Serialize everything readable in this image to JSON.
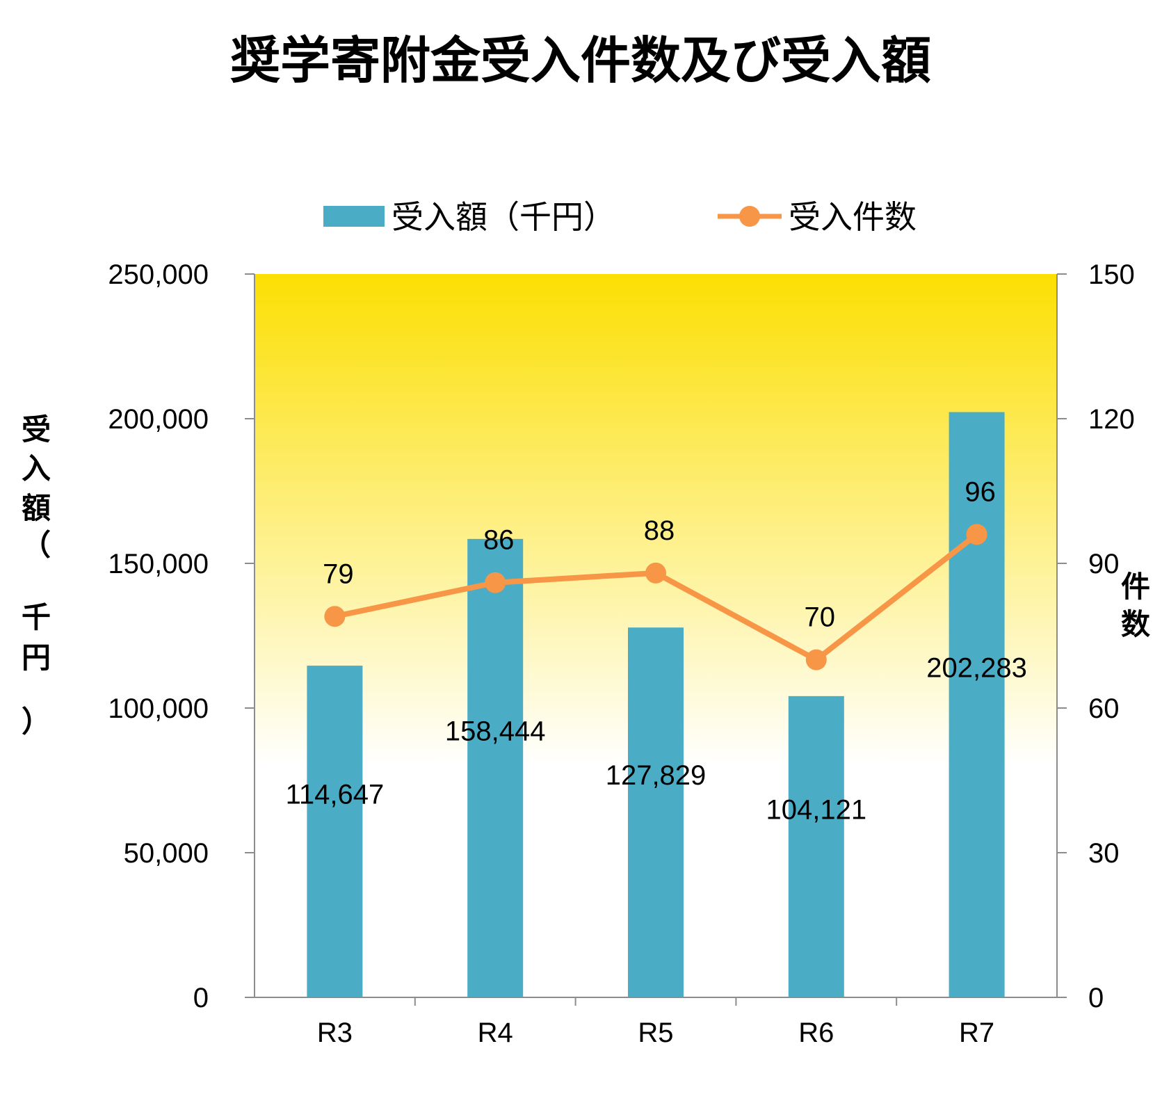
{
  "chart_data": {
    "type": "bar",
    "title": "奨学寄附金受入件数及び受入額",
    "categories": [
      "R3",
      "R4",
      "R5",
      "R6",
      "R7"
    ],
    "series": [
      {
        "name": "受入額（千円）",
        "type": "bar",
        "axis": "left",
        "values": [
          114647,
          158444,
          127829,
          104121,
          202283
        ],
        "labels": [
          "114,647",
          "158,444",
          "127,829",
          "104,121",
          "202,283"
        ]
      },
      {
        "name": "受入件数",
        "type": "line",
        "axis": "right",
        "values": [
          79,
          86,
          88,
          70,
          96
        ],
        "labels": [
          "79",
          "86",
          "88",
          "70",
          "96"
        ]
      }
    ],
    "ylim_left": [
      0,
      250000
    ],
    "ylim_right": [
      0,
      150
    ],
    "yticks_left": [
      "0",
      "50,000",
      "100,000",
      "150,000",
      "200,000",
      "250,000"
    ],
    "yticks_right": [
      "0",
      "30",
      "60",
      "90",
      "120",
      "150"
    ],
    "ylabel_left": [
      "受",
      "入",
      "額",
      "（",
      "千",
      "円",
      "）"
    ],
    "ylabel_right": [
      "件",
      "数"
    ],
    "legend_position": "top",
    "grid": false,
    "colors": {
      "bar": "#4bacc6",
      "line": "#f79646",
      "plot_gradient_top": "#fcdf03",
      "plot_gradient_bottom": "#ffffff",
      "axis": "#8c8c8c"
    }
  }
}
